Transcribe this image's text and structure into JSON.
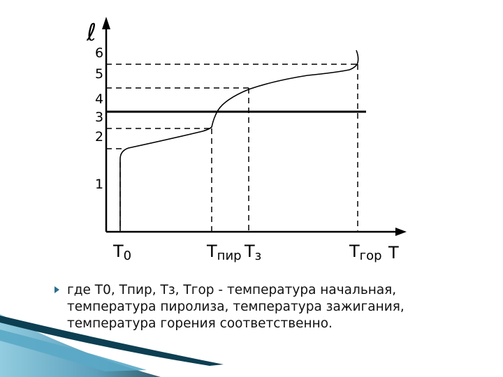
{
  "diagram": {
    "y_axis_label": "ℓ",
    "x_axis_label": "T",
    "y_ticks": [
      "6",
      "5",
      "4",
      "3",
      "2",
      "1"
    ],
    "x_ticks": [
      {
        "main": "T",
        "sub": "0"
      },
      {
        "main": "T",
        "sub": "пир"
      },
      {
        "main": "T",
        "sub": "з"
      },
      {
        "main": "T",
        "sub": "гор"
      }
    ]
  },
  "caption": {
    "text": "где Т0, Тпир, Тз, Тгор - температура начальная, температура пиролиза, температура зажигания, температура горения соответственно."
  },
  "colors": {
    "bullet": "#2a6f8f",
    "swoosh_dark": "#0d3f52",
    "swoosh_light": "#7fc3da"
  }
}
